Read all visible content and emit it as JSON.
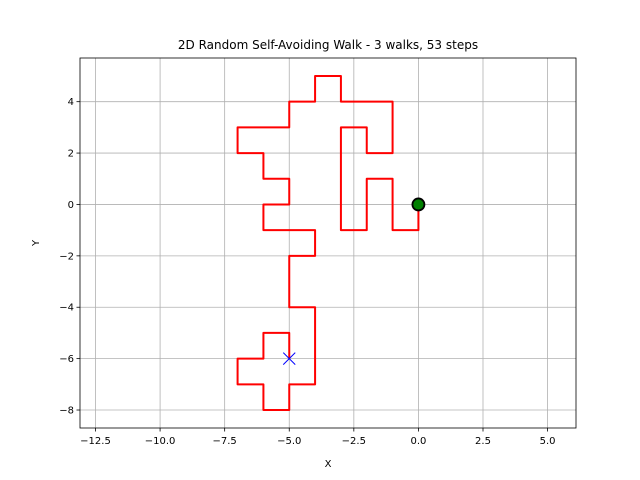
{
  "chart_data": {
    "type": "line",
    "title": "2D Random Self-Avoiding Walk - 3 walks, 53 steps",
    "xlabel": "X",
    "ylabel": "Y",
    "xlim": [
      -13.1,
      6.1
    ],
    "ylim": [
      -8.7,
      5.7
    ],
    "xticks": [
      -12.5,
      -10.0,
      -7.5,
      -5.0,
      -2.5,
      0.0,
      2.5,
      5.0
    ],
    "xtick_labels": [
      "−12.5",
      "−10.0",
      "−7.5",
      "−5.0",
      "−2.5",
      "0.0",
      "2.5",
      "5.0"
    ],
    "yticks": [
      -8,
      -6,
      -4,
      -2,
      0,
      2,
      4
    ],
    "ytick_labels": [
      "−8",
      "−6",
      "−4",
      "−2",
      "0",
      "2",
      "4"
    ],
    "grid": true,
    "series": [
      {
        "color": "#ff0000",
        "x": [
          0,
          0,
          -1,
          -1,
          -2,
          -2,
          -3,
          -3,
          -2,
          -2,
          -1,
          -1,
          -3,
          -3,
          -4,
          -4,
          -5,
          -5,
          -7,
          -7,
          -6,
          -6,
          -5,
          -5,
          -6,
          -6,
          -4,
          -4,
          -5,
          -5,
          -4,
          -4,
          -5,
          -5,
          -6,
          -6,
          -7,
          -7,
          -6,
          -6,
          -5,
          -5
        ],
        "y": [
          0,
          -1,
          -1,
          1,
          1,
          -1,
          -1,
          3,
          3,
          2,
          2,
          4,
          4,
          5,
          5,
          4,
          4,
          3,
          3,
          2,
          2,
          1,
          1,
          0,
          0,
          -1,
          -1,
          -2,
          -2,
          -4,
          -4,
          -7,
          -7,
          -8,
          -8,
          -7,
          -7,
          -6,
          -6,
          -5,
          -5,
          -6
        ]
      }
    ],
    "start_marker": {
      "x": 0,
      "y": 0,
      "fill": "#008000",
      "edge": "#000000"
    },
    "end_marker": {
      "x": -5,
      "y": -6,
      "color": "#0000ff",
      "symbol": "x"
    }
  }
}
